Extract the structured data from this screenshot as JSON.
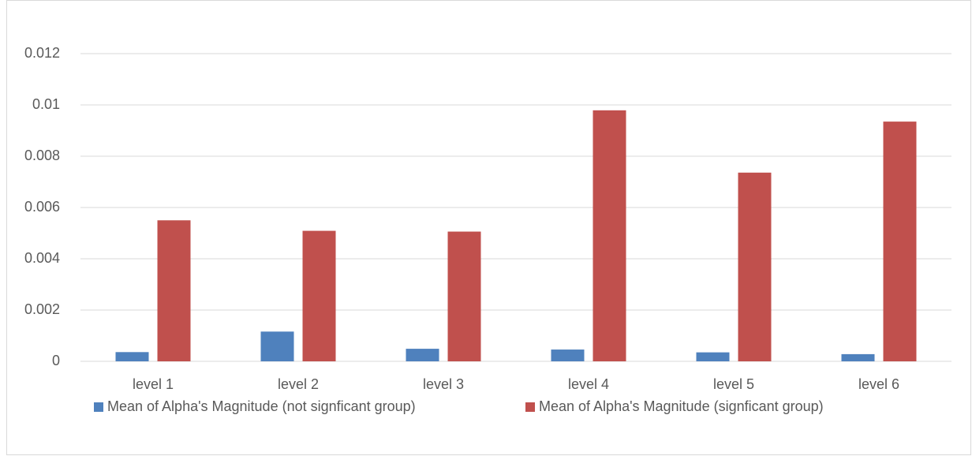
{
  "chart_data": {
    "type": "bar",
    "categories": [
      "level 1",
      "level 2",
      "level 3",
      "level 4",
      "level 5",
      "level 6"
    ],
    "series": [
      {
        "name": "Mean of Alpha's Magnitude (not signficant group)",
        "color": "#4f81bd",
        "values": [
          0.00036,
          0.00116,
          0.00049,
          0.00046,
          0.00035,
          0.00028
        ]
      },
      {
        "name": "Mean of Alpha's Magnitude (signficant group)",
        "color": "#c0504d",
        "values": [
          0.0055,
          0.00509,
          0.00506,
          0.00979,
          0.00736,
          0.00935
        ]
      }
    ],
    "ylim": [
      0,
      0.012
    ],
    "yticks": [
      0,
      0.002,
      0.004,
      0.006,
      0.008,
      0.01,
      0.012
    ],
    "grid": true,
    "legend": "bottom"
  }
}
